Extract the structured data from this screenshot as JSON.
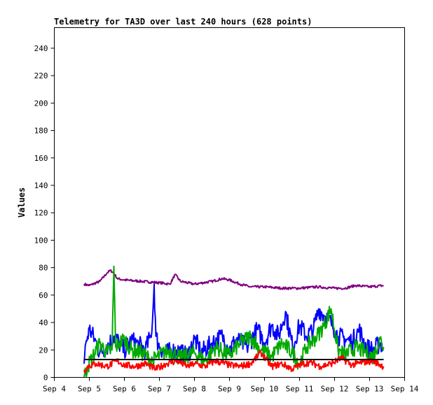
{
  "chart_data": {
    "type": "line",
    "title": "Telemetry for TA3D over last 240 hours (628 points)",
    "xlabel": "",
    "ylabel": "Values",
    "x_ticks": [
      "Sep 4",
      "Sep 5",
      "Sep 6",
      "Sep 7",
      "Sep 8",
      "Sep 9",
      "Sep 10",
      "Sep 11",
      "Sep 12",
      "Sep 13",
      "Sep 14"
    ],
    "xlim": [
      4,
      14
    ],
    "ylim": [
      0,
      255
    ],
    "y_ticks": [
      0,
      20,
      40,
      60,
      80,
      100,
      120,
      140,
      160,
      180,
      200,
      220,
      240
    ],
    "grid": false,
    "legend": "none",
    "series": [
      {
        "color": "#0000ff",
        "x": [
          4.85,
          4.9,
          5.0,
          5.15,
          5.3,
          5.5,
          5.7,
          5.85,
          6.0,
          6.2,
          6.4,
          6.6,
          6.75,
          6.8,
          6.85,
          6.9,
          7.0,
          7.2,
          7.5,
          7.8,
          8.0,
          8.2,
          8.5,
          8.8,
          9.0,
          9.2,
          9.5,
          9.8,
          10.0,
          10.2,
          10.4,
          10.6,
          10.8,
          11.0,
          11.2,
          11.4,
          11.55,
          11.7,
          11.9,
          12.1,
          12.3,
          12.5,
          12.7,
          12.9,
          13.1,
          13.3,
          13.4
        ],
        "y": [
          10,
          25,
          35,
          28,
          18,
          22,
          30,
          25,
          20,
          27,
          24,
          20,
          30,
          40,
          68,
          30,
          22,
          18,
          20,
          15,
          28,
          18,
          25,
          30,
          20,
          28,
          22,
          35,
          25,
          38,
          30,
          48,
          22,
          38,
          30,
          35,
          50,
          45,
          40,
          30,
          28,
          26,
          35,
          22,
          20,
          25,
          22
        ]
      },
      {
        "color": "#00aa00",
        "x": [
          4.85,
          4.95,
          5.1,
          5.3,
          5.5,
          5.65,
          5.7,
          5.75,
          5.85,
          6.0,
          6.2,
          6.5,
          6.8,
          7.0,
          7.3,
          7.6,
          8.0,
          8.3,
          8.6,
          9.0,
          9.3,
          9.6,
          9.9,
          10.2,
          10.5,
          10.8,
          11.0,
          11.2,
          11.5,
          11.7,
          11.9,
          12.1,
          12.3,
          12.6,
          12.9,
          13.1,
          13.3,
          13.4
        ],
        "y": [
          0,
          8,
          15,
          25,
          18,
          20,
          81,
          22,
          25,
          28,
          20,
          18,
          12,
          16,
          20,
          14,
          18,
          12,
          22,
          16,
          25,
          30,
          20,
          15,
          25,
          18,
          10,
          22,
          30,
          38,
          50,
          20,
          16,
          22,
          18,
          15,
          28,
          22
        ]
      },
      {
        "color": "#ff0000",
        "x": [
          4.85,
          4.95,
          5.2,
          5.5,
          5.8,
          6.0,
          6.3,
          6.6,
          6.9,
          7.2,
          7.5,
          7.8,
          8.0,
          8.3,
          8.6,
          9.0,
          9.3,
          9.6,
          9.9,
          10.2,
          10.5,
          10.8,
          11.0,
          11.3,
          11.6,
          11.9,
          12.2,
          12.5,
          12.8,
          13.1,
          13.4
        ],
        "y": [
          4,
          8,
          10,
          8,
          12,
          9,
          8,
          10,
          6,
          10,
          12,
          8,
          10,
          8,
          12,
          9,
          8,
          10,
          18,
          8,
          10,
          6,
          9,
          11,
          8,
          10,
          14,
          9,
          11,
          12,
          8
        ]
      },
      {
        "color": "#000000",
        "x": [
          4.85,
          13.4
        ],
        "y": [
          13,
          13
        ]
      },
      {
        "color": "#800080",
        "x": [
          4.85,
          5.0,
          5.3,
          5.5,
          5.6,
          5.7,
          5.8,
          6.0,
          6.5,
          7.0,
          7.3,
          7.45,
          7.6,
          8.0,
          8.5,
          8.8,
          9.0,
          9.3,
          9.6,
          10.0,
          10.5,
          11.0,
          11.5,
          12.0,
          12.3,
          12.6,
          13.0,
          13.4
        ],
        "y": [
          68,
          67,
          70,
          76,
          78,
          76,
          72,
          71,
          70,
          69,
          68,
          75,
          70,
          68,
          70,
          72,
          71,
          68,
          66,
          66,
          65,
          65,
          66,
          65,
          65,
          67,
          66,
          67
        ]
      }
    ]
  }
}
